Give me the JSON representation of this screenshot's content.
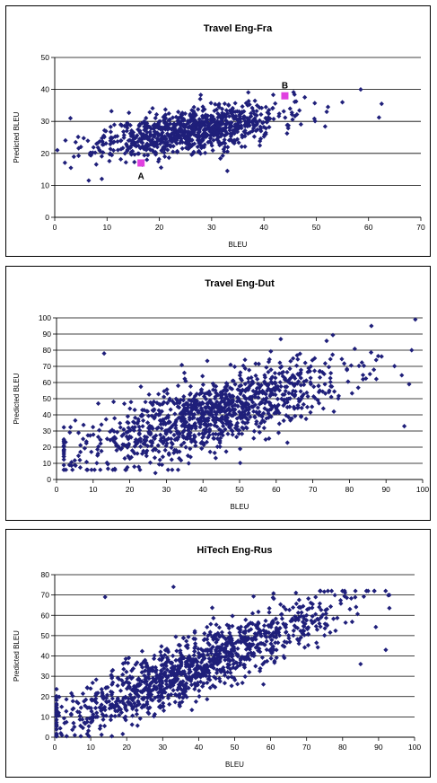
{
  "chart_data": [
    {
      "type": "scatter",
      "title": "Travel Eng-Fra",
      "xlabel": "BLEU",
      "ylabel": "Predicted BLEU",
      "xlim": [
        0,
        70
      ],
      "ylim": [
        0,
        50
      ],
      "xticks": [
        0,
        10,
        20,
        30,
        40,
        50,
        60,
        70
      ],
      "yticks": [
        0,
        10,
        20,
        30,
        40,
        50
      ],
      "grid": "horizontal",
      "marker_color": "#1f1f7a",
      "cloud": {
        "n": 900,
        "x_center": 26,
        "x_spread": 8.5,
        "x_min": 1,
        "x_max": 62,
        "slope": 0.26,
        "intercept": 20.5,
        "y_spread": 3.4,
        "y_min": 11,
        "y_max": 41,
        "seed": 11
      },
      "points": [
        {
          "x": 0.5,
          "y": 21
        },
        {
          "x": 3,
          "y": 31
        },
        {
          "x": 6.5,
          "y": 11.5
        },
        {
          "x": 9,
          "y": 12
        },
        {
          "x": 58.5,
          "y": 40
        },
        {
          "x": 62.5,
          "y": 35.5
        },
        {
          "x": 33,
          "y": 14.5
        },
        {
          "x": 4,
          "y": 23.5
        },
        {
          "x": 8,
          "y": 23
        },
        {
          "x": 45,
          "y": 34
        },
        {
          "x": 52,
          "y": 33
        },
        {
          "x": 55,
          "y": 36
        }
      ],
      "highlights": [
        {
          "label": "A",
          "x": 16.5,
          "y": 17,
          "color": "#e040e0"
        },
        {
          "label": "B",
          "x": 44,
          "y": 38,
          "color": "#e040e0"
        }
      ]
    },
    {
      "type": "scatter",
      "title": "Travel Eng-Dut",
      "xlabel": "BLEU",
      "ylabel": "Predicted BLEU",
      "xlim": [
        0,
        100
      ],
      "ylim": [
        0,
        100
      ],
      "xticks": [
        0,
        10,
        20,
        30,
        40,
        50,
        60,
        70,
        80,
        90,
        100
      ],
      "yticks": [
        0,
        10,
        20,
        30,
        40,
        50,
        60,
        70,
        80,
        90,
        100
      ],
      "grid": "horizontal",
      "marker_color": "#1f1f7a",
      "cloud": {
        "n": 1100,
        "x_center": 42,
        "x_spread": 18,
        "x_min": 2,
        "x_max": 98,
        "slope": 0.62,
        "intercept": 14,
        "y_spread": 11,
        "y_min": 6,
        "y_max": 98,
        "seed": 23
      },
      "points": [
        {
          "x": 98,
          "y": 99
        },
        {
          "x": 86,
          "y": 95
        },
        {
          "x": 95,
          "y": 33
        },
        {
          "x": 27,
          "y": 4
        },
        {
          "x": 13,
          "y": 78
        },
        {
          "x": 5,
          "y": 9
        },
        {
          "x": 2,
          "y": 18
        },
        {
          "x": 97,
          "y": 80
        }
      ],
      "highlights": []
    },
    {
      "type": "scatter",
      "title": "HiTech Eng-Rus",
      "xlabel": "BLEU",
      "ylabel": "Predicted BLEU",
      "xlim": [
        0,
        100
      ],
      "ylim": [
        0,
        80
      ],
      "xticks": [
        0,
        10,
        20,
        30,
        40,
        50,
        60,
        70,
        80,
        90,
        100
      ],
      "yticks": [
        0,
        10,
        20,
        30,
        40,
        50,
        60,
        70,
        80
      ],
      "grid": "horizontal",
      "marker_color": "#1f1f7a",
      "cloud": {
        "n": 1200,
        "x_center": 38,
        "x_spread": 20,
        "x_min": 0.5,
        "x_max": 93,
        "slope": 0.72,
        "intercept": 7,
        "y_spread": 7.5,
        "y_min": 0.5,
        "y_max": 72,
        "seed": 37
      },
      "points": [
        {
          "x": 33,
          "y": 74
        },
        {
          "x": 14,
          "y": 69
        },
        {
          "x": 93,
          "y": 70
        },
        {
          "x": 0.5,
          "y": 0.5
        },
        {
          "x": 2,
          "y": 1
        },
        {
          "x": 85,
          "y": 36
        },
        {
          "x": 92,
          "y": 43
        },
        {
          "x": 58,
          "y": 26
        }
      ],
      "highlights": []
    }
  ]
}
